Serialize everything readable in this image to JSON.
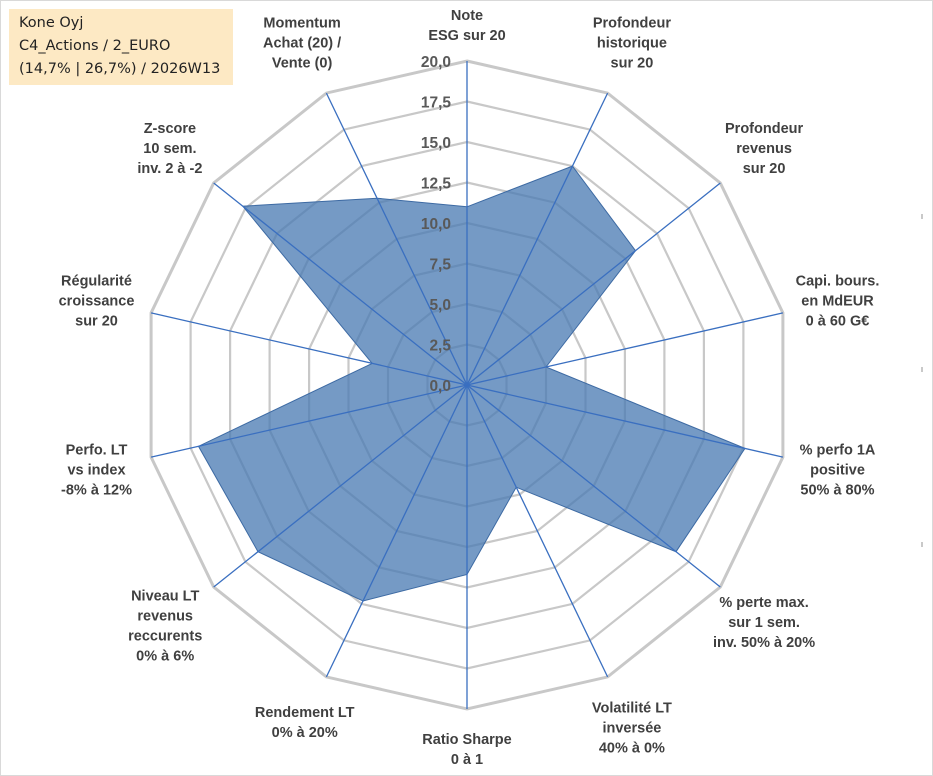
{
  "info": {
    "company": "Kone Oyj",
    "portfolio": "C4_Actions / 2_EURO",
    "stats": "(14,7% | 26,7%) / 2026W13"
  },
  "chart_data": {
    "type": "radar",
    "title": "",
    "rmax": 20,
    "ticks": [
      {
        "v": 0,
        "label": "0,0"
      },
      {
        "v": 2.5,
        "label": "2,5"
      },
      {
        "v": 5,
        "label": "5,0"
      },
      {
        "v": 7.5,
        "label": "7,5"
      },
      {
        "v": 10,
        "label": "10,0"
      },
      {
        "v": 12.5,
        "label": "12,5"
      },
      {
        "v": 15,
        "label": "15,0"
      },
      {
        "v": 17.5,
        "label": "17,5"
      },
      {
        "v": 20,
        "label": "20,0"
      }
    ],
    "axes": [
      {
        "name": "note-esg",
        "label": [
          "Note",
          "ESG sur 20"
        ],
        "value": 11.0
      },
      {
        "name": "profondeur-historique",
        "label": [
          "Profondeur",
          "historique",
          "sur 20"
        ],
        "value": 15.0
      },
      {
        "name": "profondeur-revenus",
        "label": [
          "Profondeur",
          "revenus",
          "sur 20"
        ],
        "value": 13.3
      },
      {
        "name": "capi-bours",
        "label": [
          "Capi. bours.",
          "en MdEUR",
          "0 à 60 G€"
        ],
        "value": 5.0
      },
      {
        "name": "perfo-1a-positive",
        "label": [
          "% perfo 1A",
          "positive",
          "50% à 80%"
        ],
        "value": 17.6
      },
      {
        "name": "perte-max",
        "label": [
          "% perte max.",
          "sur 1 sem.",
          "inv. 50% à 20%"
        ],
        "value": 16.5
      },
      {
        "name": "volatilite-lt",
        "label": [
          "Volatilité LT",
          "inversée",
          "40% à 0%"
        ],
        "value": 7.0
      },
      {
        "name": "ratio-sharpe",
        "label": [
          "Ratio Sharpe",
          "0 à 1"
        ],
        "value": 11.7
      },
      {
        "name": "rendement-lt",
        "label": [
          "Rendement LT",
          "0% à 20%"
        ],
        "value": 14.8
      },
      {
        "name": "niveau-lt-revenus",
        "label": [
          "Niveau LT",
          "revenus",
          "reccurents",
          "0% à 6%"
        ],
        "value": 16.5
      },
      {
        "name": "perfo-lt-vs-index",
        "label": [
          "Perfo. LT",
          "vs index",
          "-8% à 12%"
        ],
        "value": 17.0
      },
      {
        "name": "regularite-croissance",
        "label": [
          "Régularité",
          "croissance",
          "sur 20"
        ],
        "value": 6.0
      },
      {
        "name": "z-score",
        "label": [
          "Z-score",
          "10 sem.",
          "inv. 2 à -2"
        ],
        "value": 17.7
      },
      {
        "name": "momentum",
        "label": [
          "Momentum",
          "Achat (20) /",
          "Vente (0)"
        ],
        "value": 12.8
      }
    ],
    "series": [
      {
        "name": "Kone Oyj",
        "color": "#4a7ab3",
        "values": [
          11.0,
          15.0,
          13.3,
          5.0,
          17.6,
          16.5,
          7.0,
          11.7,
          14.8,
          16.5,
          17.0,
          6.0,
          17.7,
          12.8
        ]
      }
    ],
    "colors": {
      "grid": "#c8c8c8",
      "spoke": "#3a6fc0",
      "fill": "#4a7ab3"
    }
  }
}
